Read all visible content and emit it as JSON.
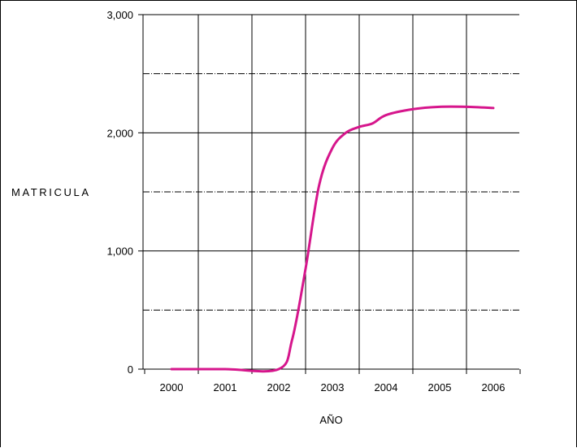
{
  "chart_data": {
    "type": "line",
    "title": "",
    "xlabel": "AÑO",
    "ylabel": "MATRICULA",
    "xlim": [
      2000,
      2006
    ],
    "ylim": [
      0,
      3000
    ],
    "x_ticks": [
      "2000",
      "2001",
      "2002",
      "2003",
      "2004",
      "2005",
      "2006"
    ],
    "y_ticks": [
      "0",
      "1,000",
      "2,000",
      "3,000"
    ],
    "y_tick_values": [
      0,
      1000,
      2000,
      3000
    ],
    "minor_y_gridlines": [
      500,
      1500,
      2500
    ],
    "grid": true,
    "legend": "none",
    "series": [
      {
        "color": "#D6168C",
        "x": [
          2000,
          2001,
          2002,
          2002.25,
          2002.5,
          2002.75,
          2003,
          2003.25,
          2003.5,
          2003.75,
          2004,
          2004.5,
          2005,
          2005.5,
          2006
        ],
        "y": [
          0,
          0,
          0,
          250,
          850,
          1550,
          1870,
          2000,
          2050,
          2080,
          2150,
          2200,
          2220,
          2220,
          2210
        ]
      }
    ]
  }
}
